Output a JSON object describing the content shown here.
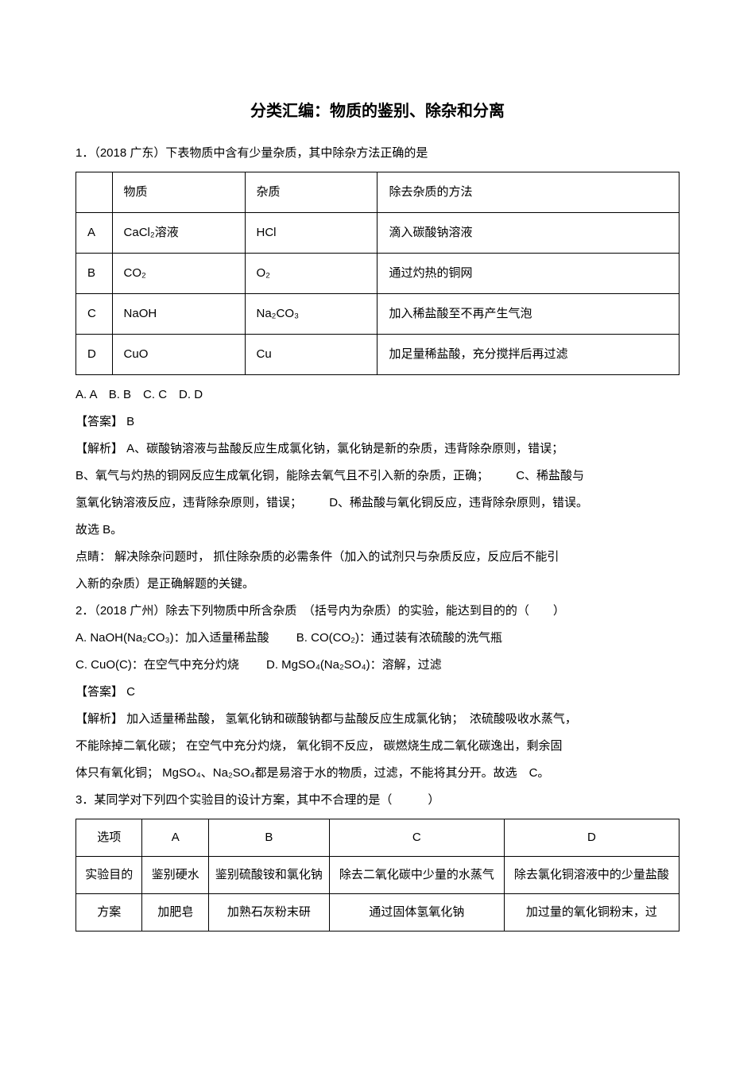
{
  "title": "分类汇编：物质的鉴别、除杂和分离",
  "q1": {
    "stem": "1．（2018 广东）下表物质中含有少量杂质，其中除杂方法正确的是",
    "table": {
      "header": [
        "",
        "物质",
        "杂质",
        "除去杂质的方法"
      ],
      "rows": [
        [
          "A",
          "CaCl₂溶液",
          "HCl",
          "滴入碳酸钠溶液"
        ],
        [
          "B",
          "CO₂",
          "O₂",
          "通过灼热的铜网"
        ],
        [
          "C",
          "NaOH",
          "Na₂CO₃",
          "加入稀盐酸至不再产生气泡"
        ],
        [
          "D",
          "CuO",
          "Cu",
          "加足量稀盐酸，充分搅拌后再过滤"
        ]
      ]
    },
    "options": "A. A　B. B　C. C　D. D",
    "answer": "【答案】 B",
    "exp1": "【解析】 A、碳酸钠溶液与盐酸反应生成氯化钠，氯化钠是新的杂质，违背除杂原则，错误；",
    "exp2_a": "B、氧气与灼热的铜网反应生成氧化铜，能除去氧气且不引入新的杂质，正确；",
    "exp2_b": "C、稀盐酸与",
    "exp3_a": "氢氧化钠溶液反应，违背除杂原则，错误；",
    "exp3_b": "D、稀盐酸与氧化铜反应，违背除杂原则，错误。",
    "exp4": "故选 B。",
    "tip1": "点睛： 解决除杂问题时， 抓住除杂质的必需条件（加入的试剂只与杂质反应，反应后不能引",
    "tip2": "入新的杂质）是正确解题的关键。"
  },
  "q2": {
    "stem": "2．（2018 广州）除去下列物质中所含杂质　（括号内为杂质）的实验，能达到目的的（　　）",
    "optA_a": "A. NaOH(Na₂CO₃)：加入适量稀盐酸",
    "optA_b": "B. CO(CO₂)：通过装有浓硫酸的洗气瓶",
    "optB_a": "C. CuO(C)：在空气中充分灼烧",
    "optB_b": "D. MgSO₄(Na₂SO₄)：溶解，过滤",
    "answer": "【答案】 C",
    "exp1": "【解析】 加入适量稀盐酸， 氢氧化钠和碳酸钠都与盐酸反应生成氯化钠；　浓硫酸吸收水蒸气，",
    "exp2": "不能除掉二氧化碳； 在空气中充分灼烧， 氧化铜不反应， 碳燃烧生成二氧化碳逸出，剩余固",
    "exp3": "体只有氧化铜； MgSO₄、Na₂SO₄都是易溶于水的物质，过滤，不能将其分开。故选　C。"
  },
  "q3": {
    "stem": "3．某同学对下列四个实验目的设计方案，其中不合理的是（　　　）",
    "table": {
      "r1": [
        "选项",
        "A",
        "B",
        "C",
        "D"
      ],
      "r2": [
        "实验目的",
        "鉴别硬水",
        "鉴别硫酸铵和氯化钠",
        "除去二氧化碳中少量的水蒸气",
        "除去氯化铜溶液中的少量盐酸"
      ],
      "r3": [
        "方案",
        "加肥皂",
        "加熟石灰粉末研",
        "通过固体氢氧化钠",
        "加过量的氧化铜粉末，过"
      ]
    }
  }
}
